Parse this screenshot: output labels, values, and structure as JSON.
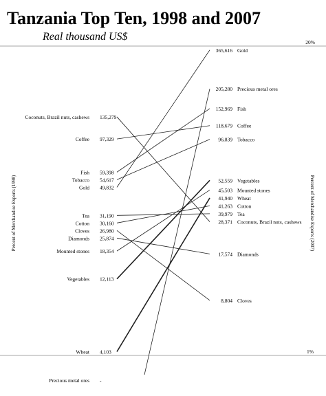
{
  "title": "Tanzania Top Ten, 1998 and 2007",
  "subtitle": "Real thousand US$",
  "chart_data": {
    "type": "slope",
    "title": "Tanzania Top Ten, 1998 and 2007",
    "subtitle": "Real thousand US$",
    "left_axis_label": "Percent of Merchandise Exports (1998)",
    "right_axis_label": "Percent of Merchandise Exports (2007)",
    "top_right_marker": "20%",
    "bottom_right_marker": "1%",
    "x": [
      "1998",
      "2007"
    ],
    "series": [
      {
        "name": "Coconuts, Brazil nuts, cashews",
        "v1998": 135279,
        "l1998": "135,279",
        "v2007": 28371,
        "l2007": "28,371"
      },
      {
        "name": "Coffee",
        "v1998": 97329,
        "l1998": "97,329",
        "v2007": 118679,
        "l2007": "118,679"
      },
      {
        "name": "Fish",
        "v1998": 59398,
        "l1998": "59,398",
        "v2007": 152969,
        "l2007": "152,969"
      },
      {
        "name": "Tobacco",
        "v1998": 54617,
        "l1998": "54,617",
        "v2007": 96839,
        "l2007": "96,839"
      },
      {
        "name": "Gold",
        "v1998": 49832,
        "l1998": "49,832",
        "v2007": 365616,
        "l2007": "365,616"
      },
      {
        "name": "Tea",
        "v1998": 31190,
        "l1998": "31,190",
        "v2007": 39979,
        "l2007": "39,979"
      },
      {
        "name": "Cotton",
        "v1998": 30160,
        "l1998": "30,160",
        "v2007": 41263,
        "l2007": "41,263"
      },
      {
        "name": "Cloves",
        "v1998": 26980,
        "l1998": "26,980",
        "v2007": 8804,
        "l2007": "8,804"
      },
      {
        "name": "Diamonds",
        "v1998": 25874,
        "l1998": "25,874",
        "v2007": 17574,
        "l2007": "17,574"
      },
      {
        "name": "Mounted stones",
        "v1998": 18354,
        "l1998": "18,354",
        "v2007": 45503,
        "l2007": "45,503"
      },
      {
        "name": "Vegetables",
        "v1998": 12113,
        "l1998": "12,113",
        "v2007": 52559,
        "l2007": "52,559"
      },
      {
        "name": "Wheat",
        "v1998": 4103,
        "l1998": "4,103",
        "v2007": 41940,
        "l2007": "41,940"
      },
      {
        "name": "Precious metal ores",
        "v1998": null,
        "l1998": "-",
        "v2007": 205280,
        "l2007": "205,280"
      }
    ]
  }
}
